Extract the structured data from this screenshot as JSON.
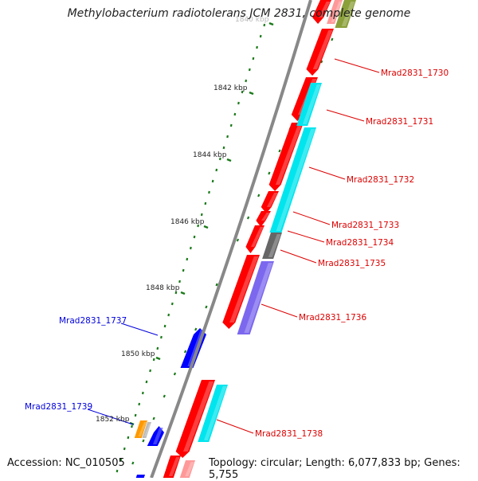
{
  "title": "Methylobacterium radiotolerans JCM 2831, complete genome",
  "accession_text": "Accession: NC_010505",
  "summary_text": "Topology: circular; Length: 6,077,833 bp; Genes: 5,755",
  "colors": {
    "backbone": "#888888",
    "forward_gene": "#ff0000",
    "reverse_gene": "#0000ff",
    "cyan_gene": "#00e5ee",
    "grey_gene": "#666666",
    "slate_gene": "#7b68ee",
    "olive_gene": "#8aa03a",
    "pink_gene": "#ff9999",
    "orange_gene": "#ff9900",
    "ticks": "#1a7a1a",
    "forward_label": "#dd0000",
    "reverse_label": "#0000dd"
  },
  "scale_labels": [
    {
      "id": "tick-1840",
      "text": "1840 kbp"
    },
    {
      "id": "tick-1842",
      "text": "1842 kbp"
    },
    {
      "id": "tick-1844",
      "text": "1844 kbp"
    },
    {
      "id": "tick-1846",
      "text": "1846 kbp"
    },
    {
      "id": "tick-1848",
      "text": "1848 kbp"
    },
    {
      "id": "tick-1850",
      "text": "1850 kbp"
    },
    {
      "id": "tick-1852",
      "text": "1852 kbp"
    }
  ],
  "gene_labels": [
    {
      "id": "1730",
      "text": "Mrad2831_1730",
      "strand": "forward"
    },
    {
      "id": "1731",
      "text": "Mrad2831_1731",
      "strand": "forward"
    },
    {
      "id": "1732",
      "text": "Mrad2831_1732",
      "strand": "forward"
    },
    {
      "id": "1733",
      "text": "Mrad2831_1733",
      "strand": "forward"
    },
    {
      "id": "1734",
      "text": "Mrad2831_1734",
      "strand": "forward"
    },
    {
      "id": "1735",
      "text": "Mrad2831_1735",
      "strand": "forward"
    },
    {
      "id": "1736",
      "text": "Mrad2831_1736",
      "strand": "forward"
    },
    {
      "id": "1737",
      "text": "Mrad2831_1737",
      "strand": "reverse"
    },
    {
      "id": "1738",
      "text": "Mrad2831_1738",
      "strand": "forward"
    },
    {
      "id": "1739",
      "text": "Mrad2831_1739",
      "strand": "reverse"
    }
  ]
}
